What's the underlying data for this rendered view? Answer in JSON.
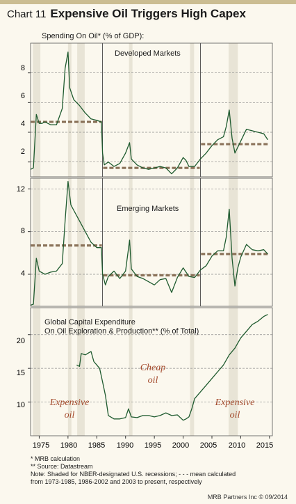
{
  "header": {
    "chart_number": "Chart 11",
    "title": "Expensive Oil Triggers High Capex"
  },
  "colors": {
    "background": "#fbf8ee",
    "title_bar": "#cbbd92",
    "series_line": "#1e5a2e",
    "mean_line": "#8a7259",
    "recession_shade": "#e8e4d6",
    "annotation_text": "#a34a2c"
  },
  "chart_data": [
    {
      "type": "line",
      "panel_label": "Spending On Oil* (% of GDP):",
      "subtitle": "Developed Markets",
      "ylim": [
        1,
        10
      ],
      "yticks": [
        2,
        4,
        6,
        8
      ],
      "grid": "dashed horizontal",
      "xlim": [
        1973.5,
        2015.5
      ],
      "series": [
        {
          "x": [
            1973.5,
            1974.0,
            1974.5,
            1975.0,
            1975.5,
            1976.0,
            1977.0,
            1978.0,
            1979.0,
            1979.5,
            1980.0,
            1980.3,
            1981.0,
            1982.0,
            1983.0,
            1984.0,
            1985.0,
            1985.8,
            1986.0,
            1986.3,
            1987.0,
            1988.0,
            1989.0,
            1990.0,
            1990.7,
            1991.0,
            1992.0,
            1993.0,
            1994.0,
            1995.0,
            1996.0,
            1997.0,
            1998.0,
            1999.0,
            2000.0,
            2000.5,
            2001.0,
            2002.0,
            2003.0,
            2004.0,
            2005.0,
            2006.0,
            2007.0,
            2007.5,
            2008.0,
            2008.5,
            2009.0,
            2009.5,
            2010.0,
            2011.0,
            2012.0,
            2013.0,
            2014.0,
            2014.7
          ],
          "values": [
            1.5,
            1.6,
            5.2,
            4.6,
            4.6,
            4.7,
            4.5,
            4.5,
            5.6,
            8.3,
            9.4,
            7.0,
            6.2,
            5.8,
            5.3,
            4.9,
            4.8,
            4.7,
            2.6,
            1.8,
            2.0,
            1.7,
            1.9,
            2.6,
            3.3,
            2.2,
            1.8,
            1.6,
            1.5,
            1.6,
            1.7,
            1.6,
            1.2,
            1.6,
            2.3,
            2.1,
            1.7,
            1.7,
            2.2,
            2.6,
            3.1,
            3.5,
            3.7,
            4.4,
            5.5,
            3.6,
            2.6,
            3.0,
            3.4,
            4.2,
            4.1,
            4.0,
            3.9,
            3.5
          ]
        },
        {
          "type": "mean",
          "x": [
            1973.5,
            1985.9
          ],
          "values": [
            4.7,
            4.7
          ]
        },
        {
          "type": "mean",
          "x": [
            1986.1,
            2002.9
          ],
          "values": [
            1.6,
            1.6
          ]
        },
        {
          "type": "mean",
          "x": [
            2003.1,
            2014.8
          ],
          "values": [
            3.2,
            3.2
          ]
        }
      ]
    },
    {
      "type": "line",
      "subtitle": "Emerging Markets",
      "ylim": [
        1,
        13
      ],
      "yticks": [
        4,
        8,
        12
      ],
      "grid": "dashed horizontal",
      "xlim": [
        1973.5,
        2015.5
      ],
      "series": [
        {
          "x": [
            1973.5,
            1974.0,
            1974.5,
            1975.0,
            1976.0,
            1977.0,
            1978.0,
            1979.0,
            1979.5,
            1980.0,
            1980.5,
            1981.0,
            1982.0,
            1983.0,
            1984.0,
            1985.0,
            1985.8,
            1986.0,
            1986.5,
            1987.0,
            1988.0,
            1989.0,
            1990.0,
            1990.7,
            1991.0,
            1992.0,
            1993.0,
            1994.0,
            1995.0,
            1996.0,
            1997.0,
            1998.0,
            1999.0,
            2000.0,
            2001.0,
            2002.0,
            2003.0,
            2004.0,
            2005.0,
            2006.0,
            2007.0,
            2007.5,
            2008.0,
            2008.5,
            2009.0,
            2009.5,
            2010.0,
            2011.0,
            2012.0,
            2013.0,
            2014.0,
            2014.7
          ],
          "values": [
            1.1,
            1.2,
            5.5,
            4.3,
            4.0,
            4.2,
            4.3,
            5.0,
            9.0,
            12.7,
            10.5,
            10.0,
            9.0,
            8.0,
            7.0,
            6.5,
            6.5,
            4.0,
            3.0,
            3.8,
            4.3,
            3.6,
            4.3,
            7.2,
            4.5,
            3.8,
            3.6,
            3.3,
            3.0,
            3.5,
            3.6,
            2.3,
            3.7,
            4.6,
            3.8,
            3.7,
            4.4,
            4.8,
            5.7,
            6.2,
            6.2,
            7.5,
            10.1,
            5.5,
            2.9,
            4.6,
            5.6,
            6.8,
            6.3,
            6.2,
            6.3,
            5.9
          ]
        },
        {
          "type": "mean",
          "x": [
            1973.5,
            1985.9
          ],
          "values": [
            6.7,
            6.7
          ]
        },
        {
          "type": "mean",
          "x": [
            1986.1,
            2002.9
          ],
          "values": [
            3.9,
            3.9
          ]
        },
        {
          "type": "mean",
          "x": [
            2003.1,
            2014.8
          ],
          "values": [
            5.9,
            5.9
          ]
        }
      ]
    },
    {
      "type": "line",
      "subtitle": "Global Capital Expenditure\nOn Oil Exploration & Production** (% of Total)",
      "ylim": [
        5,
        24
      ],
      "yticks": [
        10,
        15,
        20
      ],
      "grid": "dashed horizontal",
      "xlim": [
        1973.5,
        2015.5
      ],
      "xticks": [
        1975,
        1980,
        1985,
        1990,
        1995,
        2000,
        2005,
        2010,
        2015
      ],
      "annotations": [
        "Expensive oil",
        "Cheap oil",
        "Expensive oil"
      ],
      "series": [
        {
          "x": [
            1981.5,
            1982.0,
            1982.3,
            1983.0,
            1984.0,
            1984.5,
            1985.0,
            1985.5,
            1986.0,
            1986.5,
            1987.0,
            1988.0,
            1989.0,
            1990.0,
            1990.5,
            1991.0,
            1992.0,
            1993.0,
            1994.0,
            1995.0,
            1996.0,
            1997.0,
            1998.0,
            1999.0,
            2000.0,
            2000.5,
            2001.0,
            2001.5,
            2002.0,
            2003.0,
            2004.0,
            2005.0,
            2006.0,
            2007.0,
            2008.0,
            2009.0,
            2010.0,
            2011.0,
            2012.0,
            2013.0,
            2014.0,
            2014.7
          ],
          "values": [
            15.5,
            15.3,
            17.2,
            17.0,
            17.5,
            16.0,
            15.5,
            15.0,
            13.0,
            11.0,
            8.0,
            7.5,
            7.5,
            7.7,
            9.0,
            7.8,
            7.7,
            8.0,
            8.0,
            7.8,
            8.0,
            8.4,
            8.0,
            8.1,
            7.3,
            7.5,
            7.8,
            9.0,
            10.5,
            11.5,
            12.5,
            13.5,
            14.5,
            15.5,
            17.0,
            18.0,
            19.5,
            20.5,
            21.5,
            22.0,
            22.7,
            23.0
          ]
        }
      ]
    }
  ],
  "recessions": [
    [
      1973.9,
      1975.2
    ],
    [
      1980.0,
      1980.6
    ],
    [
      1981.6,
      1982.9
    ],
    [
      1990.6,
      1991.2
    ],
    [
      2001.2,
      2001.9
    ],
    [
      2007.9,
      2009.5
    ]
  ],
  "period_dividers": [
    1986.0,
    2003.0
  ],
  "panel1": {
    "label": "Spending On Oil* (% of GDP):",
    "subtitle": "Developed Markets"
  },
  "panel2": {
    "subtitle": "Emerging Markets"
  },
  "panel3": {
    "title_line1": "Global Capital Expenditure",
    "title_line2": "On Oil Exploration & Production** (% of Total)",
    "annot_left_1": "Expensive",
    "annot_left_2": "oil",
    "annot_mid_1": "Cheap",
    "annot_mid_2": "oil",
    "annot_right_1": "Expensive",
    "annot_right_2": "oil"
  },
  "ticks": {
    "p1": [
      "8",
      "6",
      "4",
      "2"
    ],
    "p2": [
      "12",
      "8",
      "4"
    ],
    "p3": [
      "20",
      "15",
      "10"
    ],
    "x": [
      "1975",
      "1980",
      "1985",
      "1990",
      "1995",
      "2000",
      "2005",
      "2010",
      "2015"
    ]
  },
  "notes": {
    "line1": "*  MRB calculation",
    "line2": "** Source: Datastream",
    "line3": "Note: Shaded for NBER-designated U.S. recessions; - - - mean calculated",
    "line4": "from 1973-1985, 1986-2002 and 2003 to present, respectively"
  },
  "credit": "MRB Partners Inc © 09/2014"
}
